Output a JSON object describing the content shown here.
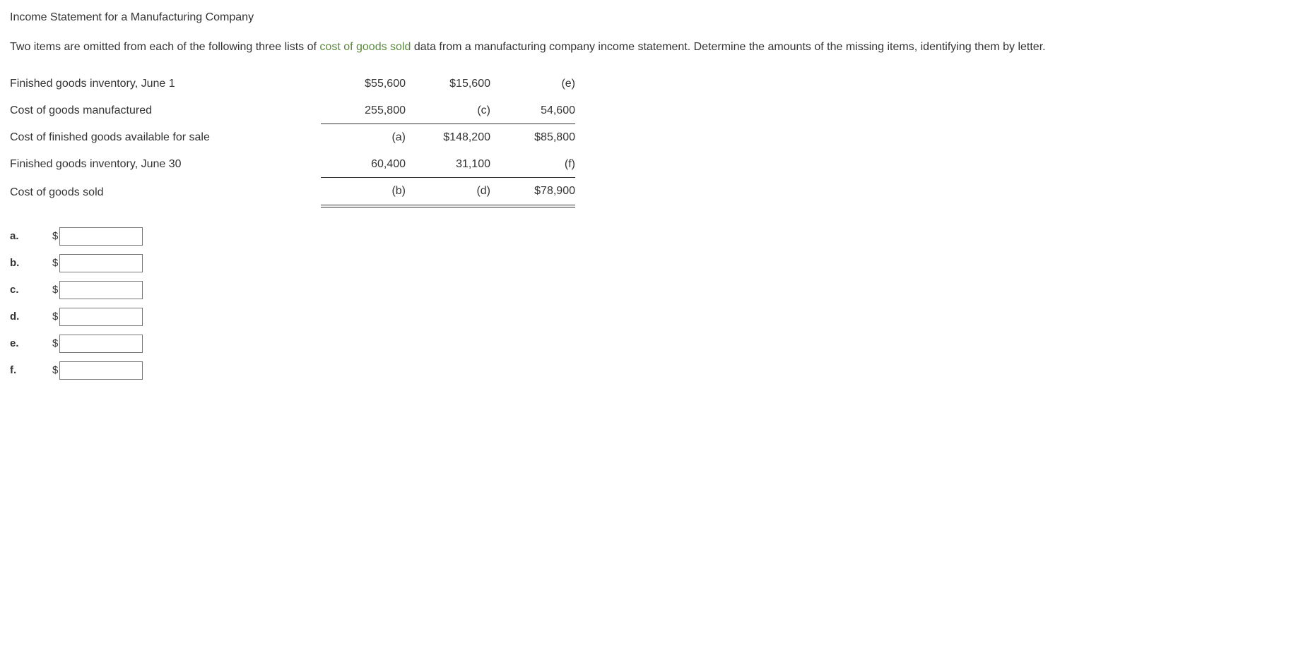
{
  "title": "Income Statement for a Manufacturing Company",
  "intro_before_link": "Two items are omitted from each of the following three lists of ",
  "intro_link": "cost of goods sold",
  "intro_after_link": " data from a manufacturing company income statement. Determine the amounts of the missing items, identifying them by letter.",
  "table": {
    "rows": [
      {
        "label": "Finished goods inventory, June 1",
        "c1": "$55,600",
        "c2": "$15,600",
        "c3": "(e)"
      },
      {
        "label": "Cost of goods manufactured",
        "c1": "255,800",
        "c2": "(c)",
        "c3": "54,600"
      },
      {
        "label": "Cost of finished goods available for sale",
        "c1": "(a)",
        "c2": "$148,200",
        "c3": "$85,800"
      },
      {
        "label": "Finished goods inventory, June 30",
        "c1": "60,400",
        "c2": "31,100",
        "c3": "(f)"
      },
      {
        "label": "Cost of goods sold",
        "c1": "(b)",
        "c2": "(d)",
        "c3": "$78,900"
      }
    ]
  },
  "answers": [
    {
      "label": "a."
    },
    {
      "label": "b."
    },
    {
      "label": "c."
    },
    {
      "label": "d."
    },
    {
      "label": "e."
    },
    {
      "label": "f."
    }
  ],
  "currency_symbol": "$"
}
